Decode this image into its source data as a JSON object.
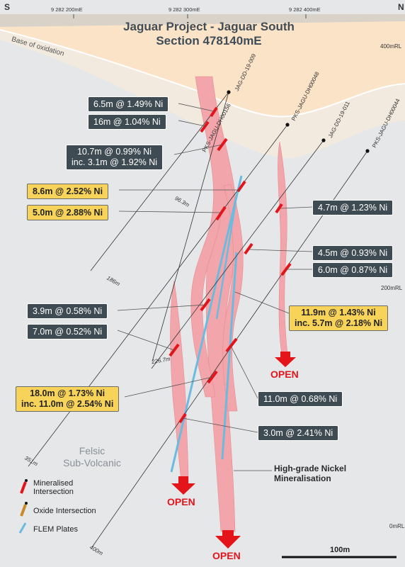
{
  "title": {
    "line1": "Jaguar Project - Jaguar South",
    "line2": "Section 478140mE"
  },
  "grid": {
    "e1": "9 282 200mE",
    "e2": "9 282 300mE",
    "e3": "9 282 400mE",
    "left_corner": "S",
    "right_corner": "N"
  },
  "rl": {
    "r400": "400mRL",
    "r200": "200mRL",
    "r0": "0mRL"
  },
  "oxidation_label": "Base of oxidation",
  "drillholes": {
    "h1": "PKS-JAGU-DH00156",
    "h2": "JAG-DD-19-009",
    "h3": "PKS-JAGU-DH00048",
    "h4": "JAG-DD-19-011",
    "h5": "PKS-JAGU-DH00044"
  },
  "depths": {
    "d1": "96.3m",
    "d2": "186m",
    "d3": "226.7m",
    "d4": "351m",
    "d5": "400m"
  },
  "intercepts": {
    "i1": "6.5m @ 1.49% Ni",
    "i2": "16m @ 1.04% Ni",
    "i3a": "10.7m @ 0.99% Ni",
    "i3b": "inc. 3.1m @ 1.92% Ni",
    "i4": "8.6m @ 2.52% Ni",
    "i5": "5.0m @ 2.88% Ni",
    "i6": "4.7m @ 1.23% Ni",
    "i7": "4.5m @ 0.93% Ni",
    "i8": "6.0m @ 0.87% Ni",
    "i9": "3.9m @ 0.58% Ni",
    "i10a": "11.9m @ 1.43% Ni",
    "i10b": "inc. 5.7m @ 2.18% Ni",
    "i11": "7.0m @ 0.52% Ni",
    "i12a": "18.0m @ 1.73% Ni",
    "i12b": "inc. 11.0m @ 2.54% Ni",
    "i13": "11.0m @ 0.68% Ni",
    "i14": "3.0m @ 2.41% Ni"
  },
  "open_label": "OPEN",
  "rock": {
    "line1": "Felsic",
    "line2": "Sub-Volcanic"
  },
  "mineralisation": {
    "line1": "High-grade Nickel",
    "line2": "Mineralisation"
  },
  "legend": {
    "mineralised_1": "Mineralised",
    "mineralised_2": "Intersection",
    "oxide": "Oxide Intersection",
    "flem": "FLEM Plates"
  },
  "scale": "100m",
  "colors": {
    "background": "#e6e7e9",
    "oxide_zone": "#fbe3c8",
    "ore_body": "#f2a5aa",
    "intersection": "#e3151b",
    "flem": "#6bbbe0",
    "label_dark": "#3f4b52",
    "label_gold": "#f8d35a"
  }
}
